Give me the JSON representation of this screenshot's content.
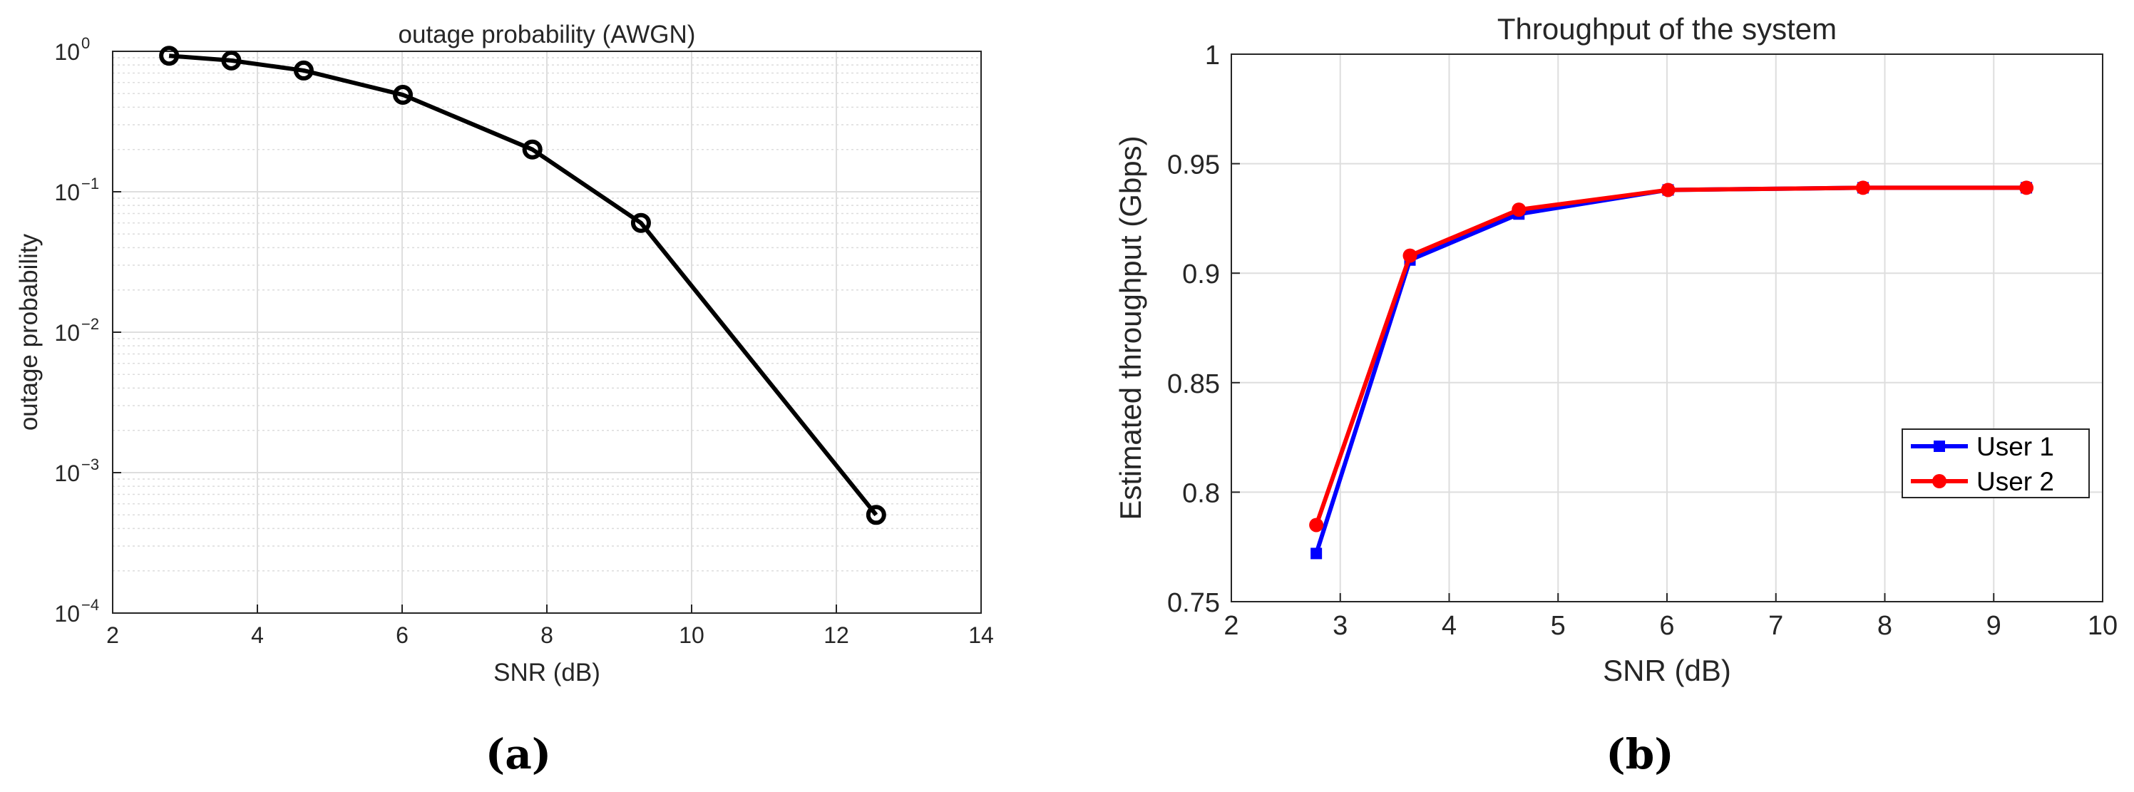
{
  "chart_data": [
    {
      "type": "line",
      "panel_label": "(a)",
      "title": "outage probability (AWGN)",
      "xlabel": "SNR (dB)",
      "ylabel": "outage probability",
      "xlim": [
        2,
        14
      ],
      "ylim": [
        0.0001,
        1
      ],
      "yscale": "log",
      "grid": true,
      "minor_grid": true,
      "x_ticks": [
        "2",
        "4",
        "6",
        "8",
        "10",
        "12",
        "14"
      ],
      "y_ticks": [
        {
          "base": "10",
          "exp": "0"
        },
        {
          "base": "10",
          "exp": "−1"
        },
        {
          "base": "10",
          "exp": "−2"
        },
        {
          "base": "10",
          "exp": "−3"
        },
        {
          "base": "10",
          "exp": "−4"
        }
      ],
      "series": [
        {
          "color": "#000000",
          "marker": "circle-open",
          "x": [
            2.78,
            3.64,
            4.64,
            6.01,
            7.8,
            9.3,
            12.55
          ],
          "y": [
            0.93,
            0.86,
            0.73,
            0.49,
            0.2,
            0.06,
            0.0005
          ]
        }
      ]
    },
    {
      "type": "line",
      "panel_label": "(b)",
      "title": "Throughput of the system",
      "xlabel": "SNR (dB)",
      "ylabel": "Estimated throughput (Gbps)",
      "xlim": [
        2,
        10
      ],
      "ylim": [
        0.75,
        1
      ],
      "grid": true,
      "legend_position": "right",
      "x_ticks": [
        "2",
        "3",
        "4",
        "5",
        "6",
        "7",
        "8",
        "9",
        "10"
      ],
      "y_ticks": [
        "0.75",
        "0.8",
        "0.85",
        "0.9",
        "0.95",
        "1"
      ],
      "categories_x": [
        2.78,
        3.64,
        4.64,
        6.01,
        7.8,
        9.3
      ],
      "series": [
        {
          "name": "User 1",
          "color": "#0000ff",
          "marker": "square",
          "values": [
            0.772,
            0.906,
            0.927,
            0.938,
            0.939,
            0.939
          ]
        },
        {
          "name": "User 2",
          "color": "#ff0000",
          "marker": "circle",
          "values": [
            0.785,
            0.908,
            0.929,
            0.938,
            0.939,
            0.939
          ]
        }
      ]
    }
  ]
}
